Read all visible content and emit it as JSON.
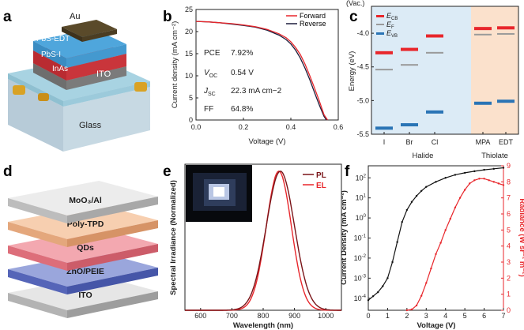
{
  "panels": {
    "a": {
      "label": "a",
      "layers": [
        "Au",
        "PbS-EDT",
        "PbS-I",
        "InAs",
        "ITO",
        "Glass"
      ]
    },
    "b": {
      "label": "b",
      "metrics": [
        {
          "name": "PCE",
          "value": "7.92%"
        },
        {
          "name": "V_OC",
          "value": "0.54 V"
        },
        {
          "name": "J_SC",
          "value": "22.3 mA cm−2"
        },
        {
          "name": "FF",
          "value": "64.8%"
        }
      ],
      "pce_label": "PCE",
      "pce_value": "7.92%",
      "voc_label_main": "V",
      "voc_label_sub": "OC",
      "voc_value": "0.54 V",
      "jsc_label_main": "J",
      "jsc_label_sub": "SC",
      "jsc_value": "22.3 mA cm−2",
      "ff_label": "FF",
      "ff_value": "64.8%"
    },
    "c": {
      "label": "c",
      "vac_label": "(Vac.)",
      "legend_ecb": "E",
      "legend_ecb_sub": "CB",
      "legend_ef": "E",
      "legend_ef_sub": "F",
      "legend_evb": "E",
      "legend_evb_sub": "VB",
      "group_halide": "Halide",
      "group_thiolate": "Thiolate"
    },
    "d": {
      "label": "d",
      "layers": [
        "MoO₃/Al",
        "Poly-TPD",
        "QDs",
        "ZnO/PEIE",
        "ITO"
      ]
    },
    "e": {
      "label": "e"
    },
    "f": {
      "label": "f"
    }
  },
  "chart_data": [
    {
      "id": "jv",
      "type": "line",
      "xlabel": "Voltage (V)",
      "ylabel": "Current density (mA cm⁻²)",
      "xlim": [
        0.0,
        0.6
      ],
      "ylim": [
        0,
        25
      ],
      "xticks": [
        "0.0",
        "0.2",
        "0.4",
        "0.6"
      ],
      "yticks": [
        "0",
        "5",
        "10",
        "15",
        "20",
        "25"
      ],
      "legend": [
        "Forward",
        "Reverse"
      ],
      "series": [
        {
          "name": "Forward",
          "color": "#e8262b",
          "x": [
            0,
            0.05,
            0.1,
            0.15,
            0.2,
            0.25,
            0.3,
            0.35,
            0.38,
            0.4,
            0.42,
            0.44,
            0.46,
            0.48,
            0.5,
            0.52,
            0.54,
            0.555
          ],
          "y": [
            22.3,
            22.2,
            22.0,
            21.8,
            21.5,
            21.1,
            20.5,
            19.5,
            18.6,
            17.7,
            16.4,
            14.8,
            12.6,
            10.0,
            7.2,
            4.3,
            1.2,
            0
          ]
        },
        {
          "name": "Reverse",
          "color": "#1c1c3a",
          "x": [
            0,
            0.05,
            0.1,
            0.15,
            0.2,
            0.25,
            0.3,
            0.35,
            0.38,
            0.4,
            0.42,
            0.44,
            0.46,
            0.48,
            0.5,
            0.52,
            0.54,
            0.55
          ],
          "y": [
            22.3,
            22.2,
            22.0,
            21.7,
            21.4,
            21.0,
            20.3,
            19.2,
            18.2,
            17.2,
            15.8,
            14.0,
            11.7,
            9.1,
            6.2,
            3.4,
            0.8,
            0
          ]
        }
      ]
    },
    {
      "id": "bands",
      "type": "scatter",
      "ylabel": "Energy (eV)",
      "ylim": [
        -5.5,
        -3.6
      ],
      "yticks": [
        "-4.0",
        "-4.5",
        "-5.0",
        "-5.5"
      ],
      "categories": [
        "I",
        "Br",
        "Cl",
        "MPA",
        "EDT"
      ],
      "series": [
        {
          "name": "E_CB",
          "color": "#e8262b",
          "values": [
            -4.29,
            -4.24,
            -4.04,
            -3.93,
            -3.92
          ]
        },
        {
          "name": "E_F",
          "color": "#9a9a9a",
          "values": [
            -4.54,
            -4.47,
            -4.29,
            -4.02,
            -4.01
          ]
        },
        {
          "name": "E_VB",
          "color": "#2a74b5",
          "values": [
            -5.41,
            -5.36,
            -5.17,
            -5.04,
            -5.01
          ]
        }
      ]
    },
    {
      "id": "spectra",
      "type": "line",
      "xlabel": "Wavelength (nm)",
      "ylabel": "Spectral Irradiance (Normalized)",
      "xlim": [
        550,
        1050
      ],
      "ylim": [
        0,
        1.05
      ],
      "xticks": [
        "600",
        "700",
        "800",
        "900",
        "1000"
      ],
      "legend": [
        "PL",
        "EL"
      ],
      "series": [
        {
          "name": "PL",
          "color": "#7a1418",
          "peak": 855,
          "sigma": 45
        },
        {
          "name": "EL",
          "color": "#e8262b",
          "peak": 850,
          "sigma": 40
        }
      ]
    },
    {
      "id": "jvr",
      "type": "line",
      "xlabel": "Voltage (V)",
      "ylabel": "Current Density (mA cm⁻²)",
      "y2label": "Radiance (W sr⁻¹ m⁻²)",
      "xlim": [
        0,
        7
      ],
      "xticks": [
        "0",
        "1",
        "2",
        "3",
        "4",
        "5",
        "6",
        "7"
      ],
      "ylim_log": [
        -4.6,
        2.6
      ],
      "y2lim": [
        0,
        9
      ],
      "y2ticks": [
        "0",
        "1",
        "2",
        "3",
        "4",
        "5",
        "6",
        "7",
        "8",
        "9"
      ],
      "series": [
        {
          "name": "Current density",
          "color": "#111111",
          "x": [
            0,
            0.25,
            0.5,
            0.75,
            1.0,
            1.25,
            1.5,
            1.75,
            2.0,
            2.25,
            2.5,
            2.75,
            3.0,
            3.5,
            4.0,
            4.5,
            5.0,
            5.5,
            6.0,
            6.5,
            7.0
          ],
          "logy": [
            -4.1,
            -3.9,
            -3.7,
            -3.4,
            -3.0,
            -2.2,
            -1.2,
            -0.2,
            0.4,
            0.8,
            1.1,
            1.35,
            1.55,
            1.8,
            2.0,
            2.15,
            2.25,
            2.33,
            2.4,
            2.45,
            2.5
          ]
        },
        {
          "name": "Radiance",
          "color": "#e8262b",
          "x": [
            2.0,
            2.25,
            2.5,
            2.75,
            3.0,
            3.25,
            3.5,
            3.75,
            4.0,
            4.25,
            4.5,
            4.75,
            5.0,
            5.25,
            5.5,
            5.75,
            6.0,
            6.25,
            6.5,
            6.75,
            7.0
          ],
          "y": [
            0,
            0.05,
            0.3,
            0.9,
            1.7,
            2.6,
            3.5,
            4.2,
            5.0,
            5.7,
            6.4,
            7.0,
            7.5,
            7.9,
            8.1,
            8.2,
            8.2,
            8.1,
            8.0,
            7.9,
            7.8
          ]
        }
      ]
    }
  ]
}
